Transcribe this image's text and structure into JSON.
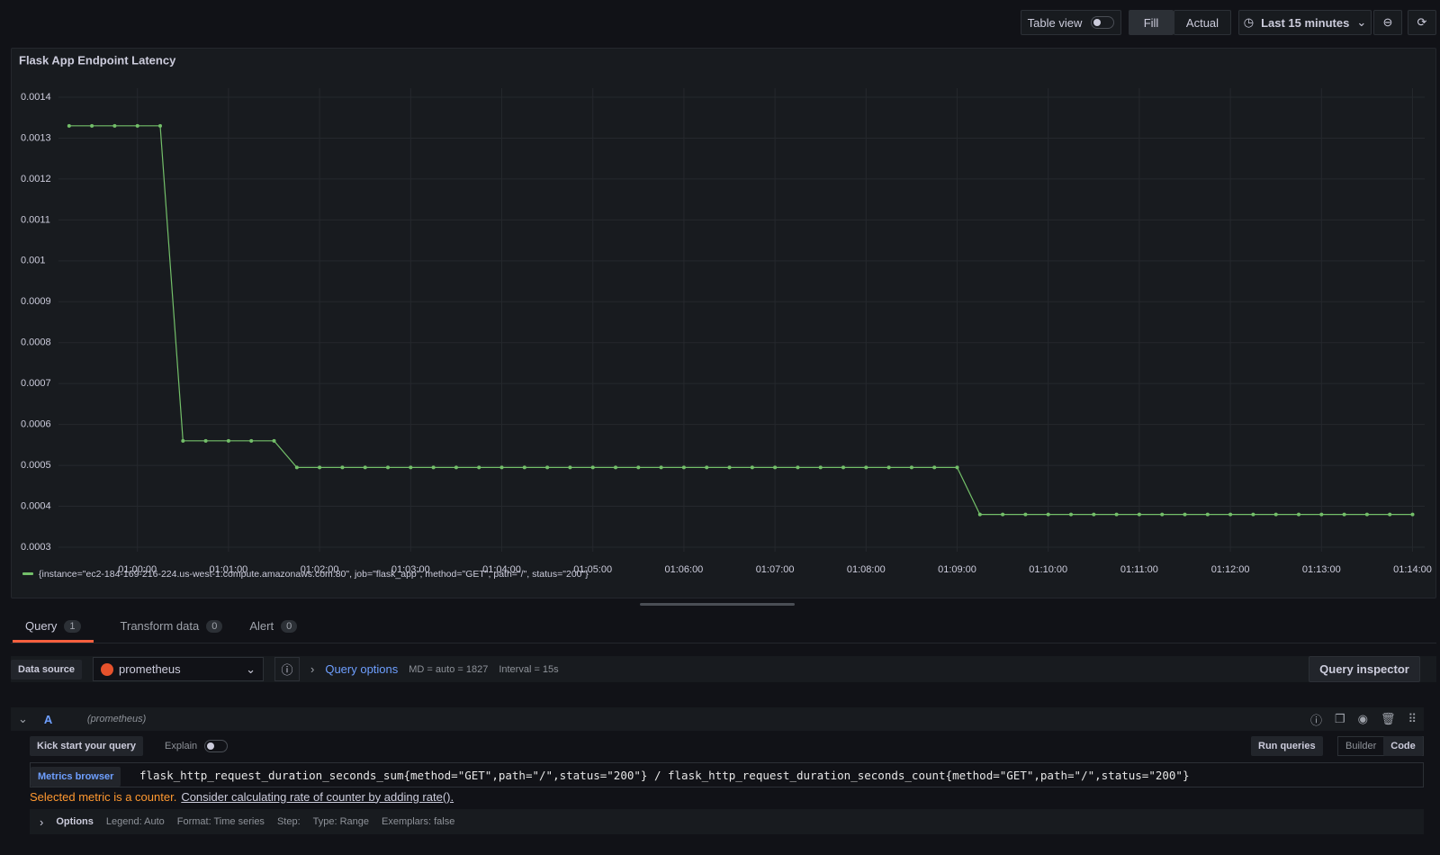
{
  "toolbar": {
    "table_view": "Table view",
    "fill": "Fill",
    "actual": "Actual",
    "time_range": "Last 15 minutes"
  },
  "chart_data": {
    "type": "line",
    "title": "Flask App Endpoint Latency",
    "x": [
      "00:59:15",
      "00:59:30",
      "00:59:45",
      "01:00:00",
      "01:00:15",
      "01:00:30",
      "01:00:45",
      "01:01:00",
      "01:01:15",
      "01:01:30",
      "01:01:45",
      "01:02:00",
      "01:02:15",
      "01:02:30",
      "01:02:45",
      "01:03:00",
      "01:03:15",
      "01:03:30",
      "01:03:45",
      "01:04:00",
      "01:04:15",
      "01:04:30",
      "01:04:45",
      "01:05:00",
      "01:05:15",
      "01:05:30",
      "01:05:45",
      "01:06:00",
      "01:06:15",
      "01:06:30",
      "01:06:45",
      "01:07:00",
      "01:07:15",
      "01:07:30",
      "01:07:45",
      "01:08:00",
      "01:08:15",
      "01:08:30",
      "01:08:45",
      "01:09:00",
      "01:09:15",
      "01:09:30",
      "01:09:45",
      "01:10:00",
      "01:10:15",
      "01:10:30",
      "01:10:45",
      "01:11:00",
      "01:11:15",
      "01:11:30",
      "01:11:45",
      "01:12:00",
      "01:12:15",
      "01:12:30",
      "01:12:45",
      "01:13:00",
      "01:13:15",
      "01:13:30",
      "01:13:45",
      "01:14:00"
    ],
    "series": [
      {
        "name": "{instance=\"ec2-184-169-216-224.us-west-1.compute.amazonaws.com:80\", job=\"flask_app\", method=\"GET\", path=\"/\", status=\"200\"}",
        "color": "#73bf69",
        "values": [
          0.00133,
          0.00133,
          0.00133,
          0.00133,
          0.00133,
          0.00056,
          0.00056,
          0.00056,
          0.00056,
          0.00056,
          0.000495,
          0.000495,
          0.000495,
          0.000495,
          0.000495,
          0.000495,
          0.000495,
          0.000495,
          0.000495,
          0.000495,
          0.000495,
          0.000495,
          0.000495,
          0.000495,
          0.000495,
          0.000495,
          0.000495,
          0.000495,
          0.000495,
          0.000495,
          0.000495,
          0.000495,
          0.000495,
          0.000495,
          0.000495,
          0.000495,
          0.000495,
          0.000495,
          0.000495,
          0.000495,
          0.00038,
          0.00038,
          0.00038,
          0.00038,
          0.00038,
          0.00038,
          0.00038,
          0.00038,
          0.00038,
          0.00038,
          0.00038,
          0.00038,
          0.00038,
          0.00038,
          0.00038,
          0.00038,
          0.00038,
          0.00038,
          0.00038,
          0.00038
        ]
      }
    ],
    "xlim": [
      "00:59:08",
      "01:14:08"
    ],
    "xticks": [
      "01:00:00",
      "01:01:00",
      "01:02:00",
      "01:03:00",
      "01:04:00",
      "01:05:00",
      "01:06:00",
      "01:07:00",
      "01:08:00",
      "01:09:00",
      "01:10:00",
      "01:11:00",
      "01:12:00",
      "01:13:00",
      "01:14:00"
    ],
    "ylim": [
      0.000289,
      0.001422
    ],
    "yticks": [
      0.0003,
      0.0004,
      0.0005,
      0.0006,
      0.0007,
      0.0008,
      0.0009,
      0.001,
      0.0011,
      0.0012,
      0.0013,
      0.0014
    ],
    "grid": true,
    "markers": true
  },
  "tabs": [
    {
      "label": "Query",
      "count": 1
    },
    {
      "label": "Transform data",
      "count": 0
    },
    {
      "label": "Alert",
      "count": 0
    }
  ],
  "query_bar": {
    "data_source_label": "Data source",
    "data_source": "prometheus",
    "query_options": "Query options",
    "max_data_points": "MD = auto = 1827",
    "interval": "Interval = 15s",
    "inspector": "Query inspector"
  },
  "query": {
    "ref_id": "A",
    "source": "(prometheus)",
    "kick_start": "Kick start your query",
    "explain": "Explain",
    "run": "Run queries",
    "builder": "Builder",
    "code": "Code",
    "metrics_browser": "Metrics browser",
    "expression": "flask_http_request_duration_seconds_sum{method=\"GET\",path=\"/\",status=\"200\"} / flask_http_request_duration_seconds_count{method=\"GET\",path=\"/\",status=\"200\"}",
    "warning": "Selected metric is a counter.",
    "hint": "Consider calculating rate of counter by adding rate().",
    "options_label": "Options",
    "options": [
      "Legend: Auto",
      "Format: Time series",
      "Step:",
      "Type: Range",
      "Exemplars: false"
    ]
  }
}
